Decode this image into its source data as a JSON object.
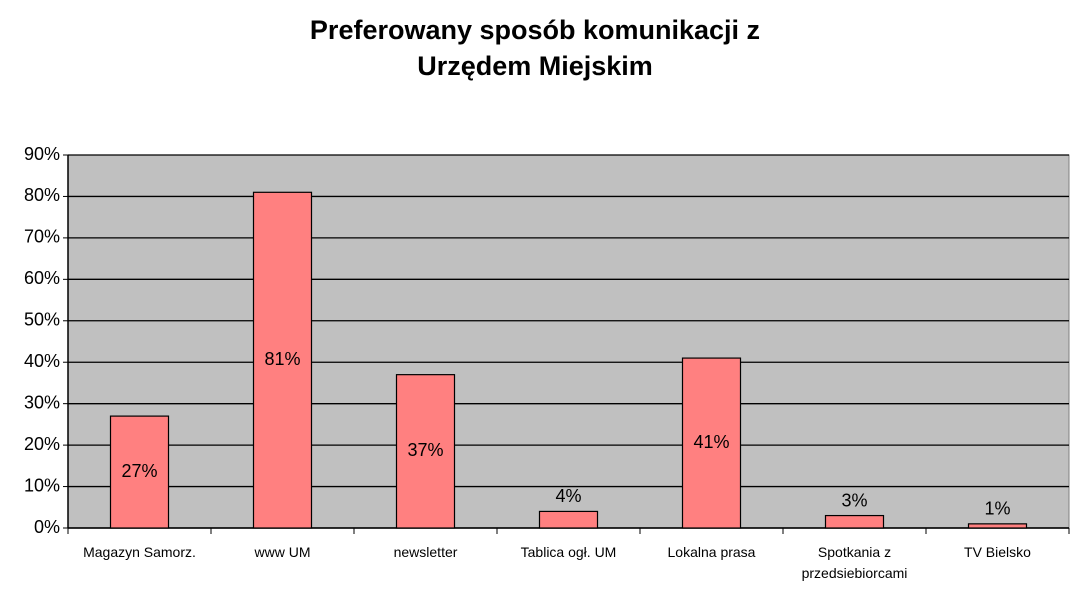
{
  "chart_data": {
    "type": "bar",
    "title": "Preferowany sposób komunikacji z Urzędem Miejskim",
    "categories": [
      "Magazyn Samorz.",
      "www UM",
      "newsletter",
      "Tablica ogł. UM",
      "Lokalna prasa",
      "Spotkania z przedsiebiorcami",
      "TV Bielsko"
    ],
    "values": [
      27,
      81,
      37,
      4,
      41,
      3,
      1
    ],
    "value_labels": [
      "27%",
      "81%",
      "37%",
      "4%",
      "41%",
      "3%",
      "1%"
    ],
    "color": "#ff8080",
    "ylim": [
      0,
      90
    ],
    "yticks": [
      {
        "value": 0,
        "label": "0%"
      },
      {
        "value": 10,
        "label": "10%"
      },
      {
        "value": 20,
        "label": "20%"
      },
      {
        "value": 30,
        "label": "30%"
      },
      {
        "value": 40,
        "label": "40%"
      },
      {
        "value": 50,
        "label": "50%"
      },
      {
        "value": 60,
        "label": "60%"
      },
      {
        "value": 70,
        "label": "70%"
      },
      {
        "value": 80,
        "label": "80%"
      },
      {
        "value": 90,
        "label": "90%"
      }
    ],
    "grid": true
  }
}
